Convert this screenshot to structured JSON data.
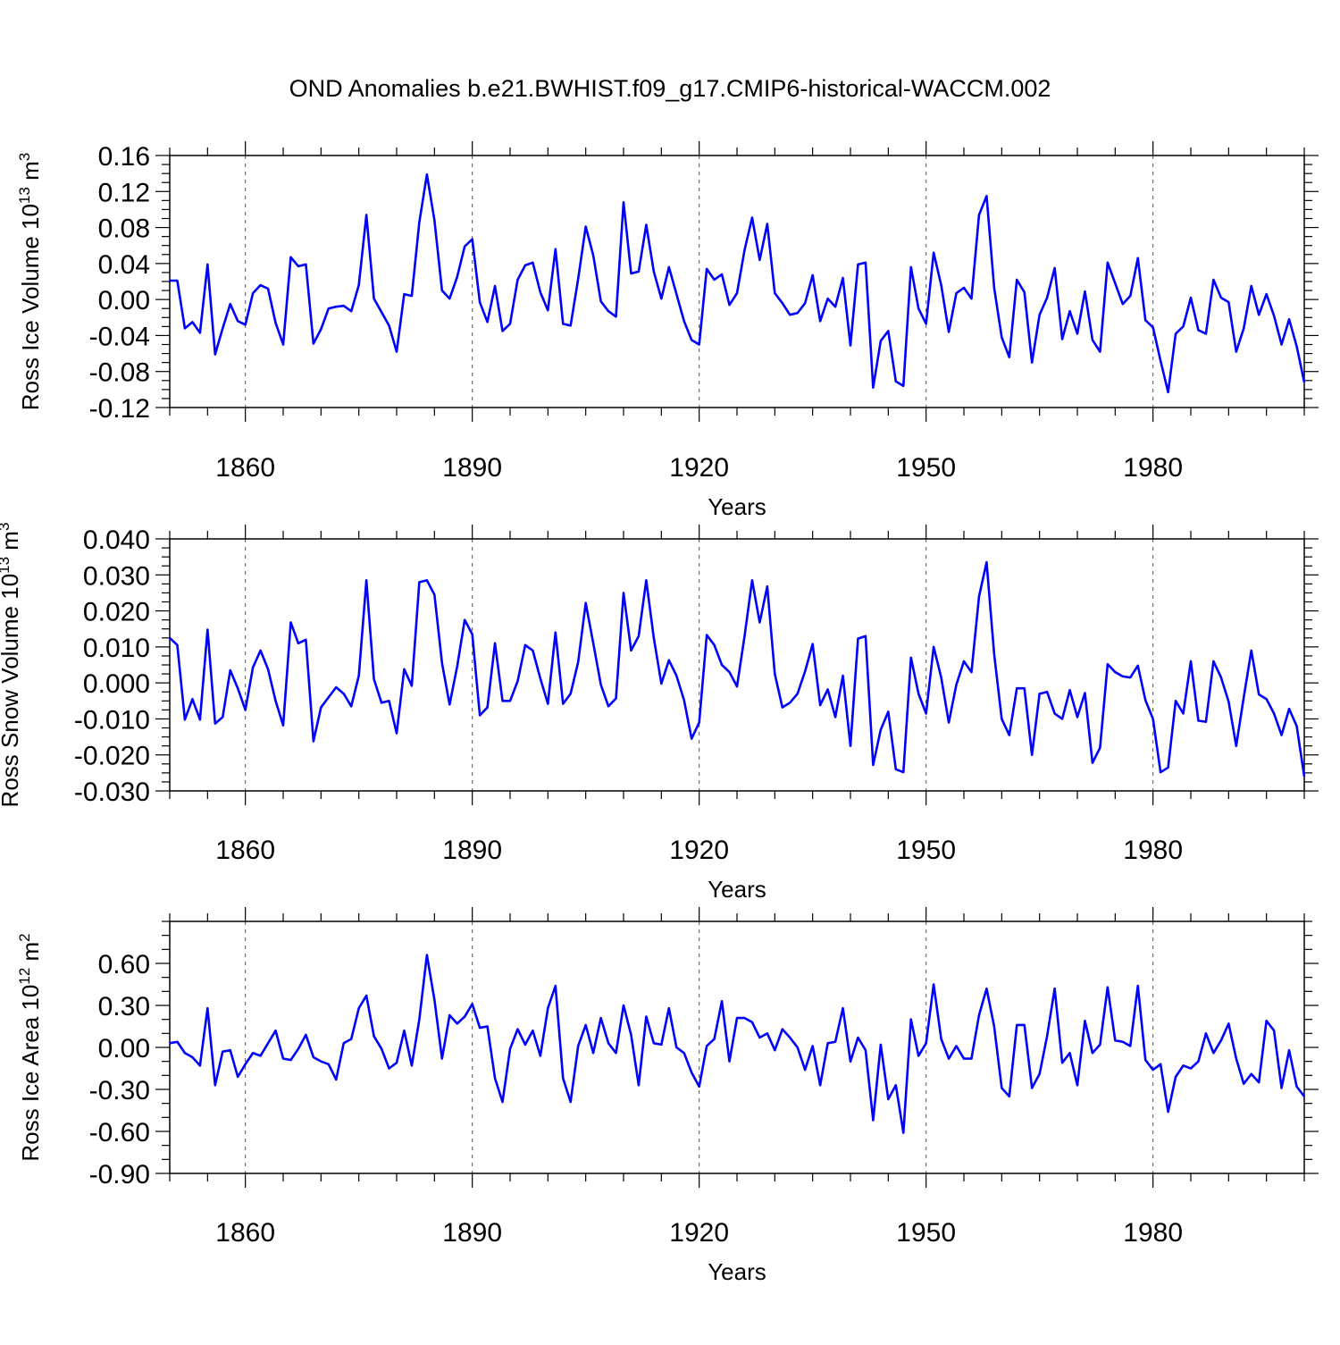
{
  "title": "OND Anomalies b.e21.BWHIST.f09_g17.CMIP6-historical-WACCM.002",
  "colors": {
    "line": "#0000ff",
    "axis": "#000000",
    "grid": "#555555"
  },
  "chart_data": [
    {
      "type": "line",
      "id": "ice-volume",
      "ylabel": "Ross Ice Volume 10",
      "ylabel_exp": "13",
      "ylabel_unit": "m",
      "ylabel_unit_exp": "3",
      "xlabel": "Years",
      "xlim": [
        1850,
        2000
      ],
      "ylim": [
        -0.12,
        0.16
      ],
      "ytick_values": [
        -0.12,
        -0.08,
        -0.04,
        0.0,
        0.04,
        0.08,
        0.12,
        0.16
      ],
      "ytick_labels": [
        "-0.12",
        "-0.08",
        "-0.04",
        "0.00",
        "0.04",
        "0.08",
        "0.12",
        "0.16"
      ],
      "yminor_step": 0.01,
      "xtick_values": [
        1860,
        1890,
        1920,
        1950,
        1980
      ],
      "xtick_labels": [
        "1860",
        "1890",
        "1920",
        "1950",
        "1980"
      ],
      "x_start": 1850,
      "values": [
        0.021,
        0.021,
        -0.032,
        -0.025,
        -0.037,
        0.039,
        -0.061,
        -0.032,
        -0.005,
        -0.024,
        -0.028,
        0.007,
        0.016,
        0.012,
        -0.026,
        -0.05,
        0.047,
        0.037,
        0.039,
        -0.049,
        -0.033,
        -0.01,
        -0.008,
        -0.007,
        -0.013,
        0.016,
        0.094,
        0.001,
        -0.014,
        -0.029,
        -0.058,
        0.006,
        0.004,
        0.086,
        0.139,
        0.088,
        0.01,
        0.001,
        0.025,
        0.059,
        0.067,
        -0.003,
        -0.025,
        0.015,
        -0.035,
        -0.027,
        0.022,
        0.038,
        0.041,
        0.008,
        -0.012,
        0.056,
        -0.027,
        -0.029,
        0.023,
        0.081,
        0.049,
        -0.002,
        -0.013,
        -0.019,
        0.108,
        0.029,
        0.031,
        0.083,
        0.031,
        0.001,
        0.036,
        0.006,
        -0.024,
        -0.045,
        -0.05,
        0.034,
        0.022,
        0.028,
        -0.006,
        0.007,
        0.055,
        0.091,
        0.044,
        0.084,
        0.007,
        -0.004,
        -0.017,
        -0.015,
        -0.004,
        0.027,
        -0.024,
        0.001,
        -0.008,
        0.024,
        -0.051,
        0.039,
        0.041,
        -0.098,
        -0.046,
        -0.035,
        -0.091,
        -0.096,
        0.036,
        -0.01,
        -0.027,
        0.052,
        0.016,
        -0.036,
        0.007,
        0.013,
        0.001,
        0.094,
        0.115,
        0.013,
        -0.042,
        -0.064,
        0.022,
        0.008,
        -0.07,
        -0.017,
        0.002,
        0.035,
        -0.044,
        -0.013,
        -0.038,
        0.009,
        -0.045,
        -0.058,
        0.041,
        0.018,
        -0.005,
        0.004,
        0.046,
        -0.023,
        -0.031,
        -0.068,
        -0.103,
        -0.038,
        -0.03,
        0.002,
        -0.034,
        -0.038,
        0.022,
        0.002,
        -0.003,
        -0.058,
        -0.032,
        0.015,
        -0.017,
        0.006,
        -0.018,
        -0.05,
        -0.022,
        -0.052,
        -0.092
      ]
    },
    {
      "type": "line",
      "id": "snow-volume",
      "ylabel": "Ross Snow Volume 10",
      "ylabel_exp": "13",
      "ylabel_unit": "m",
      "ylabel_unit_exp": "3",
      "xlabel": "Years",
      "xlim": [
        1850,
        2000
      ],
      "ylim": [
        -0.03,
        0.04
      ],
      "ytick_values": [
        -0.03,
        -0.02,
        -0.01,
        0.0,
        0.01,
        0.02,
        0.03,
        0.04
      ],
      "ytick_labels": [
        "-0.030",
        "-0.020",
        "-0.010",
        "0.000",
        "0.010",
        "0.020",
        "0.030",
        "0.040"
      ],
      "yminor_step": 0.0025,
      "xtick_values": [
        1860,
        1890,
        1920,
        1950,
        1980
      ],
      "xtick_labels": [
        "1860",
        "1890",
        "1920",
        "1950",
        "1980"
      ],
      "x_start": 1850,
      "values": [
        0.0125,
        0.0105,
        -0.0102,
        -0.0045,
        -0.0102,
        0.0148,
        -0.0113,
        -0.0095,
        0.0035,
        -0.0015,
        -0.0075,
        0.0043,
        0.009,
        0.0038,
        -0.005,
        -0.0118,
        0.0168,
        0.011,
        0.012,
        -0.0162,
        -0.0068,
        -0.004,
        -0.0012,
        -0.003,
        -0.0065,
        0.002,
        0.0285,
        0.001,
        -0.0055,
        -0.005,
        -0.014,
        0.0038,
        -0.0008,
        0.028,
        0.0285,
        0.0245,
        0.0055,
        -0.006,
        0.0045,
        0.0175,
        0.0135,
        -0.009,
        -0.0068,
        0.011,
        -0.005,
        -0.005,
        0.0005,
        0.0105,
        0.009,
        0.0012,
        -0.0058,
        0.014,
        -0.0058,
        -0.003,
        0.0058,
        0.0222,
        0.011,
        -0.0005,
        -0.0065,
        -0.0043,
        0.025,
        0.009,
        0.013,
        0.0285,
        0.0125,
        -0.0002,
        0.0063,
        0.002,
        -0.0048,
        -0.0155,
        -0.011,
        0.0133,
        0.0105,
        0.005,
        0.003,
        -0.001,
        0.013,
        0.0285,
        0.0168,
        0.0268,
        0.0025,
        -0.0068,
        -0.0055,
        -0.003,
        0.0032,
        0.0108,
        -0.0062,
        -0.0018,
        -0.0095,
        0.002,
        -0.0175,
        0.0123,
        0.013,
        -0.0228,
        -0.013,
        -0.008,
        -0.024,
        -0.0248,
        0.007,
        -0.003,
        -0.0085,
        0.01,
        0.0015,
        -0.011,
        -0.0005,
        0.006,
        0.003,
        0.024,
        0.0335,
        0.008,
        -0.01,
        -0.0145,
        -0.0015,
        -0.0015,
        -0.02,
        -0.003,
        -0.0025,
        -0.0085,
        -0.01,
        -0.002,
        -0.0095,
        -0.0028,
        -0.0222,
        -0.018,
        0.0052,
        0.003,
        0.0018,
        0.0015,
        0.0048,
        -0.0048,
        -0.01,
        -0.0248,
        -0.0235,
        -0.005,
        -0.0085,
        0.006,
        -0.0105,
        -0.0108,
        0.006,
        0.0015,
        -0.0052,
        -0.0175,
        -0.004,
        0.009,
        -0.0032,
        -0.0045,
        -0.0085,
        -0.0145,
        -0.0072,
        -0.012,
        -0.026
      ]
    },
    {
      "type": "line",
      "id": "ice-area",
      "ylabel": "Ross Ice Area 10",
      "ylabel_exp": "12",
      "ylabel_unit": "m",
      "ylabel_unit_exp": "2",
      "xlabel": "Years",
      "xlim": [
        1850,
        2000
      ],
      "ylim": [
        -0.9,
        0.9
      ],
      "ytick_values": [
        -0.9,
        -0.6,
        -0.3,
        0.0,
        0.3,
        0.6
      ],
      "ytick_labels": [
        "-0.90",
        "-0.60",
        "-0.30",
        "0.00",
        "0.30",
        "0.60"
      ],
      "yminor_step": 0.1,
      "xtick_values": [
        1860,
        1890,
        1920,
        1950,
        1980
      ],
      "xtick_labels": [
        "1860",
        "1890",
        "1920",
        "1950",
        "1980"
      ],
      "x_start": 1850,
      "values": [
        0.03,
        0.04,
        -0.04,
        -0.07,
        -0.13,
        0.28,
        -0.27,
        -0.03,
        -0.02,
        -0.21,
        -0.12,
        -0.04,
        -0.06,
        0.03,
        0.12,
        -0.08,
        -0.09,
        -0.01,
        0.09,
        -0.07,
        -0.1,
        -0.12,
        -0.23,
        0.03,
        0.06,
        0.28,
        0.37,
        0.08,
        -0.01,
        -0.15,
        -0.11,
        0.12,
        -0.13,
        0.2,
        0.66,
        0.34,
        -0.08,
        0.23,
        0.17,
        0.22,
        0.31,
        0.14,
        0.15,
        -0.22,
        -0.39,
        -0.01,
        0.13,
        0.02,
        0.12,
        -0.06,
        0.28,
        0.44,
        -0.22,
        -0.39,
        0.01,
        0.16,
        -0.04,
        0.21,
        0.03,
        -0.04,
        0.3,
        0.09,
        -0.27,
        0.22,
        0.03,
        0.02,
        0.28,
        0.0,
        -0.04,
        -0.18,
        -0.28,
        0.01,
        0.06,
        0.33,
        -0.1,
        0.21,
        0.21,
        0.18,
        0.07,
        0.1,
        -0.02,
        0.13,
        0.07,
        0.0,
        -0.16,
        0.01,
        -0.27,
        0.03,
        0.04,
        0.28,
        -0.1,
        0.07,
        -0.02,
        -0.52,
        0.02,
        -0.37,
        -0.27,
        -0.61,
        0.2,
        -0.06,
        0.03,
        0.45,
        0.06,
        -0.08,
        0.01,
        -0.08,
        -0.08,
        0.23,
        0.42,
        0.15,
        -0.29,
        -0.35,
        0.16,
        0.16,
        -0.29,
        -0.19,
        0.08,
        0.42,
        -0.11,
        -0.04,
        -0.27,
        0.19,
        -0.04,
        0.02,
        0.43,
        0.05,
        0.04,
        0.01,
        0.44,
        -0.09,
        -0.16,
        -0.12,
        -0.46,
        -0.21,
        -0.13,
        -0.15,
        -0.1,
        0.1,
        -0.04,
        0.05,
        0.17,
        -0.08,
        -0.26,
        -0.19,
        -0.25,
        0.19,
        0.12,
        -0.29,
        -0.02,
        -0.28,
        -0.35
      ]
    }
  ]
}
